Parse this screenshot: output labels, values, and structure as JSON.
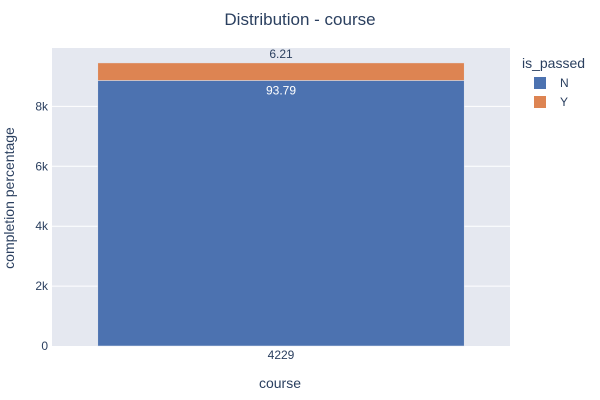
{
  "chart_data": {
    "type": "bar",
    "stacked": true,
    "title": "Distribution - course",
    "xlabel": "course",
    "ylabel": "completion percentage",
    "categories": [
      "4229"
    ],
    "series": [
      {
        "name": "N",
        "values": [
          8865
        ],
        "label": "93.79",
        "color": "#4c72b0",
        "label_color": "#ffffff",
        "label_position": "inside-top"
      },
      {
        "name": "Y",
        "values": [
          587
        ],
        "label": "6.21",
        "color": "#dd8452",
        "label_color": "#2a3f5f",
        "label_position": "outside-top"
      }
    ],
    "ylim": [
      0,
      9950
    ],
    "yticks": [
      0,
      2000,
      4000,
      6000,
      8000
    ],
    "ytick_labels": [
      "0",
      "2k",
      "4k",
      "6k",
      "8k"
    ],
    "grid": true,
    "legend": {
      "title": "is_passed",
      "position": "right"
    },
    "colors": {
      "plot_bg": "#e5e8f0",
      "grid": "#ffffff",
      "text": "#2a3f5f"
    }
  }
}
